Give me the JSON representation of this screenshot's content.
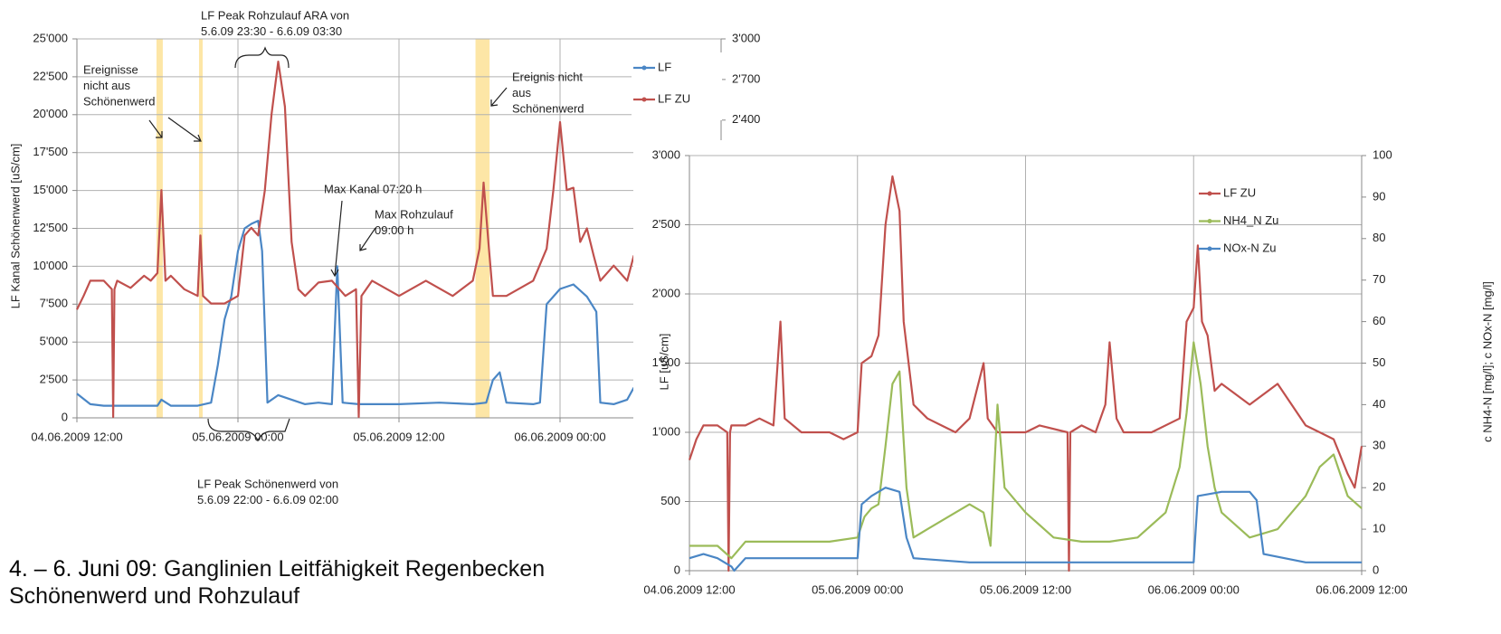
{
  "chart_data": [
    {
      "type": "line",
      "y_label": "LF Kanal Schönenwerd [uS/cm]",
      "xlim": [
        0,
        48
      ],
      "xticks": [
        {
          "value": 0,
          "label": "04.06.2009 12:00"
        },
        {
          "value": 12,
          "label": "05.06.2009 00:00"
        },
        {
          "value": 24,
          "label": "05.06.2009 12:00"
        },
        {
          "value": 36,
          "label": "06.06.2009 00:00"
        }
      ],
      "ylim": [
        0,
        25000
      ],
      "yticks": [
        {
          "value": 0,
          "label": "0"
        },
        {
          "value": 2500,
          "label": "2'500"
        },
        {
          "value": 5000,
          "label": "5'000"
        },
        {
          "value": 7500,
          "label": "7'500"
        },
        {
          "value": 10000,
          "label": "10'000"
        },
        {
          "value": 12500,
          "label": "12'500"
        },
        {
          "value": 15000,
          "label": "15'000"
        },
        {
          "value": 17500,
          "label": "17'500"
        },
        {
          "value": 20000,
          "label": "20'000"
        },
        {
          "value": 22500,
          "label": "22'500"
        },
        {
          "value": 25000,
          "label": "25'000"
        }
      ],
      "y2lim": [
        200,
        3000
      ],
      "y2ticks": [
        {
          "value": 2400,
          "label": "2'400"
        },
        {
          "value": 2700,
          "label": "2'700"
        },
        {
          "value": 3000,
          "label": "3'000"
        }
      ],
      "grid": true,
      "bands": [
        [
          5.93,
          6.4
        ],
        [
          9.1,
          9.37
        ],
        [
          29.7,
          30.75
        ]
      ],
      "band_color": "#fde6a6",
      "series": [
        {
          "name": "LF",
          "color": "#4a86c5",
          "x": [
            0,
            1,
            2,
            3,
            5,
            6,
            6.3,
            7,
            9,
            10,
            10.5,
            11,
            11.5,
            12,
            12.5,
            13,
            13.5,
            13.8,
            14.2,
            15,
            16,
            17,
            18,
            19,
            19.4,
            19.8,
            21,
            24,
            27,
            29.5,
            30.5,
            31,
            31.5,
            32,
            34,
            34.5,
            35,
            36,
            37,
            38,
            38.7,
            39,
            40,
            41,
            41.5
          ],
          "values": [
            1600,
            900,
            800,
            800,
            800,
            800,
            1200,
            800,
            800,
            1000,
            3500,
            6500,
            8000,
            11000,
            12500,
            12800,
            13000,
            11000,
            1000,
            1500,
            1200,
            900,
            1000,
            900,
            10000,
            1000,
            900,
            900,
            1000,
            900,
            1000,
            2500,
            3000,
            1000,
            900,
            1000,
            7500,
            8500,
            8800,
            8000,
            7000,
            1000,
            900,
            1200,
            2000
          ]
        },
        {
          "name": "LF ZU",
          "color": "#c0504d",
          "axis": "y2",
          "x": [
            0,
            0.5,
            1,
            2,
            2.6,
            2.7,
            2.8,
            3,
            4,
            5,
            5.5,
            6,
            6.3,
            6.6,
            7,
            8,
            9,
            9.2,
            9.4,
            10,
            11,
            12,
            12.5,
            13,
            13.5,
            14,
            14.5,
            15,
            15.5,
            16,
            16.5,
            17,
            18,
            19,
            20,
            20.8,
            21,
            21.2,
            22,
            24,
            26,
            28,
            29.5,
            30,
            30.3,
            30.7,
            31,
            32,
            34,
            35,
            35.5,
            36,
            36.5,
            37,
            37.5,
            38,
            38.5,
            39,
            40,
            41,
            41.5
          ],
          "values": [
            1000,
            1101,
            1213,
            1213,
            1150,
            207,
            1150,
            1213,
            1160,
            1250,
            1213,
            1270,
            1883,
            1213,
            1250,
            1150,
            1101,
            1548,
            1101,
            1045,
            1045,
            1101,
            1548,
            1604,
            1548,
            1880,
            2441,
            2832,
            2500,
            1500,
            1150,
            1101,
            1200,
            1213,
            1101,
            1150,
            207,
            1101,
            1213,
            1101,
            1213,
            1101,
            1213,
            1450,
            1939,
            1450,
            1101,
            1101,
            1213,
            1450,
            1883,
            2385,
            1883,
            1900,
            1500,
            1600,
            1400,
            1213,
            1325,
            1213,
            1400
          ]
        }
      ],
      "annotations": [
        {
          "lines": [
            "LF Peak Rohzulauf ARA von",
            "5.6.09 23:30 - 6.6.09 03:30"
          ]
        },
        {
          "lines": [
            "Ereignisse",
            "nicht aus",
            "Schönenwerd"
          ]
        },
        {
          "lines": [
            "Ereignis nicht",
            "aus",
            "Schönenwerd"
          ]
        },
        {
          "lines": [
            "Max Kanal 07:20 h"
          ]
        },
        {
          "lines": [
            "Max Rohzulauf",
            "09:00 h"
          ]
        },
        {
          "lines": [
            "LF Peak Schönenwerd von",
            "5.6.09 22:00 - 6.6.09 02:00"
          ]
        }
      ]
    },
    {
      "type": "line",
      "y_label": "LF  [uS/cm]",
      "y2_label": "c NH4-N [mg/l]; c NOx-N [mg/l]",
      "xlim": [
        0,
        48
      ],
      "xticks": [
        {
          "value": 0,
          "label": "04.06.2009 12:00"
        },
        {
          "value": 12,
          "label": "05.06.2009 00:00"
        },
        {
          "value": 24,
          "label": "05.06.2009 12:00"
        },
        {
          "value": 36,
          "label": "06.06.2009 00:00"
        },
        {
          "value": 48,
          "label": "06.06.2009 12:00"
        }
      ],
      "ylim": [
        0,
        3000
      ],
      "yticks": [
        0,
        500,
        {
          "value": 1000,
          "label": "1'000"
        },
        {
          "value": 1500,
          "label": "1'500"
        },
        {
          "value": 2000,
          "label": "2'000"
        },
        {
          "value": 2500,
          "label": "2'500"
        },
        {
          "value": 3000,
          "label": "3'000"
        }
      ],
      "y2lim": [
        0,
        100
      ],
      "y2ticks": [
        0,
        10,
        20,
        30,
        40,
        50,
        60,
        70,
        80,
        90,
        100
      ],
      "grid": true,
      "series": [
        {
          "name": "LF ZU",
          "color": "#c0504d",
          "x": [
            0,
            0.5,
            1,
            2,
            2.7,
            2.8,
            2.9,
            3,
            4,
            5,
            6,
            6.5,
            6.8,
            8,
            10,
            11,
            12,
            12.3,
            13,
            13.5,
            14,
            14.5,
            15,
            15.3,
            16,
            17,
            18,
            19,
            20,
            21,
            21.3,
            22,
            24,
            25,
            27,
            27.1,
            27.2,
            28,
            29,
            29.7,
            30,
            30.5,
            31,
            33,
            35,
            35.5,
            36,
            36.3,
            36.6,
            37,
            37.5,
            38,
            40,
            42,
            43,
            44,
            45,
            46,
            47,
            47.5,
            48
          ],
          "values": [
            800,
            950,
            1050,
            1050,
            1000,
            0,
            1000,
            1050,
            1050,
            1100,
            1050,
            1800,
            1100,
            1000,
            1000,
            950,
            1000,
            1500,
            1550,
            1700,
            2500,
            2850,
            2600,
            1800,
            1200,
            1100,
            1050,
            1000,
            1100,
            1500,
            1100,
            1000,
            1000,
            1050,
            1000,
            0,
            1000,
            1050,
            1000,
            1200,
            1650,
            1100,
            1000,
            1000,
            1100,
            1800,
            1900,
            2350,
            1800,
            1700,
            1300,
            1350,
            1200,
            1350,
            1200,
            1050,
            1000,
            950,
            700,
            600,
            900
          ]
        },
        {
          "name": "NH4_N Zu",
          "color": "#9bbb59",
          "axis": "y2",
          "x": [
            0,
            2,
            3,
            4,
            6,
            8,
            10,
            12,
            12.5,
            13,
            13.5,
            14,
            14.5,
            15,
            15.5,
            16,
            17,
            19,
            20,
            21,
            21.5,
            22,
            22.5,
            24,
            26,
            28,
            30,
            32,
            34,
            35,
            35.5,
            36,
            36.5,
            37,
            37.5,
            38,
            40,
            42,
            44,
            45,
            46,
            47,
            48
          ],
          "values": [
            6,
            6,
            3,
            7,
            7,
            7,
            7,
            8,
            13,
            15,
            16,
            30,
            45,
            48,
            20,
            8,
            10,
            14,
            16,
            14,
            6,
            40,
            20,
            14,
            8,
            7,
            7,
            8,
            14,
            25,
            38,
            55,
            45,
            30,
            20,
            14,
            8,
            10,
            18,
            25,
            28,
            18,
            15
          ]
        },
        {
          "name": "NOx-N Zu",
          "color": "#4a86c5",
          "axis": "y2",
          "x": [
            0,
            1,
            2,
            3,
            3.2,
            4,
            8,
            12,
            12.3,
            13,
            14,
            15,
            15.5,
            16,
            20,
            24,
            28,
            32,
            36,
            36.3,
            38,
            40,
            40.5,
            41,
            44,
            48
          ],
          "values": [
            3,
            4,
            3,
            1,
            0,
            3,
            3,
            3,
            16,
            18,
            20,
            19,
            8,
            3,
            2,
            2,
            2,
            2,
            2,
            18,
            19,
            19,
            17,
            4,
            2,
            2
          ]
        }
      ]
    }
  ],
  "caption": {
    "bold": "4. – 6. Juni 09:",
    "text": " Ganglinien Leitfähigkeit Regenbecken Schönenwerd und Rohzulauf"
  }
}
